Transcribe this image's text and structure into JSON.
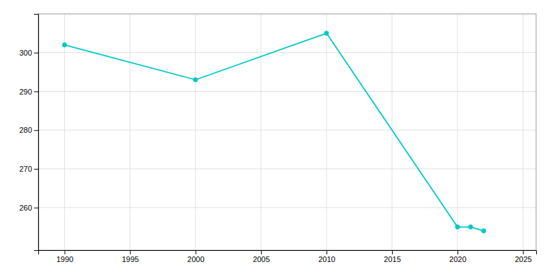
{
  "chart_data": {
    "type": "line",
    "x": [
      1990,
      2000,
      2010,
      2020,
      2021,
      2022
    ],
    "values": [
      302,
      293,
      305,
      255,
      255,
      254
    ],
    "color": "#00c8c8",
    "marker": "circle",
    "xlim": [
      1988,
      2026
    ],
    "ylim": [
      249,
      310
    ],
    "xticks": [
      1990,
      1995,
      2000,
      2005,
      2010,
      2015,
      2020,
      2025
    ],
    "yticks": [
      260,
      270,
      280,
      290,
      300
    ],
    "grid": true
  }
}
